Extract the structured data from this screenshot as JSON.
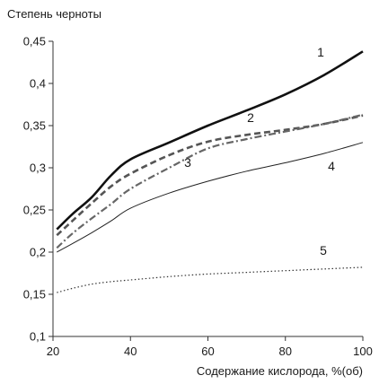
{
  "chart_data": {
    "type": "line",
    "title": "",
    "ylabel": "Степень черноты",
    "xlabel": "Содержание кислорода, %(об)",
    "xlim": [
      20,
      100
    ],
    "ylim": [
      0.1,
      0.45
    ],
    "xticks": [
      20,
      40,
      60,
      80,
      100
    ],
    "xtick_labels": [
      "20",
      "40",
      "60",
      "80",
      "100"
    ],
    "yticks": [
      0.1,
      0.15,
      0.2,
      0.25,
      0.3,
      0.35,
      0.4,
      0.45
    ],
    "ytick_labels": [
      "0,1",
      "0,15",
      "0,2",
      "0,25",
      "0,3",
      "0,35",
      "0,4",
      "0,45"
    ],
    "grid": false,
    "legend": "none",
    "series": [
      {
        "label": "1",
        "style": "solid-thick",
        "x": [
          21,
          25,
          30,
          35,
          40,
          50,
          60,
          70,
          80,
          90,
          100
        ],
        "y": [
          0.227,
          0.245,
          0.265,
          0.291,
          0.31,
          0.33,
          0.35,
          0.368,
          0.387,
          0.41,
          0.438
        ]
      },
      {
        "label": "2",
        "style": "dashed",
        "x": [
          21,
          25,
          30,
          35,
          40,
          50,
          60,
          70,
          80,
          90,
          100
        ],
        "y": [
          0.22,
          0.237,
          0.258,
          0.278,
          0.293,
          0.315,
          0.331,
          0.339,
          0.345,
          0.352,
          0.362
        ]
      },
      {
        "label": "3",
        "style": "dash-dot",
        "x": [
          21,
          25,
          30,
          35,
          40,
          50,
          60,
          70,
          80,
          90,
          100
        ],
        "y": [
          0.205,
          0.222,
          0.24,
          0.257,
          0.275,
          0.3,
          0.323,
          0.334,
          0.343,
          0.352,
          0.363
        ]
      },
      {
        "label": "4",
        "style": "solid-thin",
        "x": [
          21,
          25,
          30,
          35,
          40,
          50,
          60,
          70,
          80,
          90,
          100
        ],
        "y": [
          0.2,
          0.21,
          0.223,
          0.237,
          0.252,
          0.27,
          0.284,
          0.296,
          0.306,
          0.317,
          0.33
        ]
      },
      {
        "label": "5",
        "style": "dotted",
        "x": [
          21,
          25,
          30,
          35,
          40,
          50,
          60,
          70,
          80,
          90,
          100
        ],
        "y": [
          0.152,
          0.157,
          0.162,
          0.165,
          0.167,
          0.171,
          0.174,
          0.176,
          0.178,
          0.18,
          0.182
        ]
      }
    ]
  }
}
